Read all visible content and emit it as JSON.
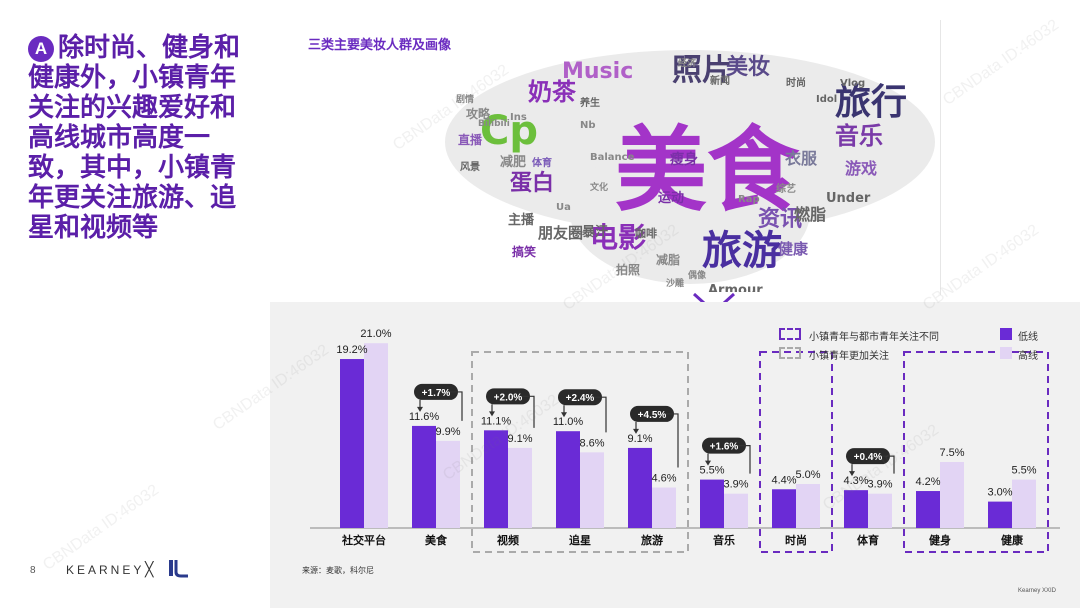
{
  "headline": {
    "badge": "A",
    "text": "除时尚、健身和健康外，小镇青年关注的兴趣爱好和高线城市高度一致，其中，小镇青年更关注旅游、追星和视频等"
  },
  "section_title": "三类主要美妆人群及画像",
  "word_cloud": {
    "words": [
      "美食",
      "旅游",
      "旅行",
      "照片",
      "Cp",
      "电影",
      "奶茶",
      "Music",
      "美妆",
      "音乐",
      "蛋白",
      "资讯",
      "游戏",
      "衣服",
      "减肥",
      "朋友圈",
      "直播",
      "运动",
      "燃脂",
      "主播",
      "瘦身",
      "健康",
      "咖啡",
      "Armour",
      "Under",
      "Idol",
      "Vlog",
      "Balance",
      "体育",
      "综艺",
      "攻略",
      "减脂",
      "拍照",
      "搞笑",
      "新闻",
      "时尚",
      "暴汗",
      "Nb",
      "Ins",
      "Ua",
      "养生",
      "风景",
      "经济",
      "剧情",
      "Bilibili",
      "Rap",
      "偶像",
      "文化",
      "沙雕"
    ]
  },
  "legend": {
    "different_label": "小镇青年与都市青年关注不同",
    "more_label": "小镇青年更加关注",
    "series": [
      {
        "name": "低线",
        "color": "#6a2bd6"
      },
      {
        "name": "高线",
        "color": "#e2d4f4"
      }
    ]
  },
  "chart_data": {
    "type": "bar",
    "categories": [
      "社交平台",
      "美食",
      "视频",
      "追星",
      "旅游",
      "音乐",
      "时尚",
      "体育",
      "健身",
      "健康"
    ],
    "series": [
      {
        "name": "低线",
        "values": [
          19.2,
          11.6,
          11.1,
          11.0,
          9.1,
          5.5,
          4.4,
          4.3,
          4.2,
          3.0
        ]
      },
      {
        "name": "高线",
        "values": [
          21.0,
          9.9,
          9.1,
          8.6,
          4.6,
          3.9,
          5.0,
          3.9,
          7.5,
          5.5
        ]
      }
    ],
    "value_labels": {
      "low": [
        "19.2%",
        "11.6%",
        "11.1%",
        "11.0%",
        "9.1%",
        "5.5%",
        "4.4%",
        "4.3%",
        "4.2%",
        "3.0%"
      ],
      "high": [
        "21.0%",
        "9.9%",
        "9.1%",
        "8.6%",
        "4.6%",
        "3.9%",
        "5.0%",
        "3.9%",
        "7.5%",
        "5.5%"
      ]
    },
    "diff_callouts": [
      {
        "category": "美食",
        "label": "+1.7%"
      },
      {
        "category": "视频",
        "label": "+2.0%"
      },
      {
        "category": "追星",
        "label": "+2.4%"
      },
      {
        "category": "旅游",
        "label": "+4.5%"
      },
      {
        "category": "音乐",
        "label": "+1.6%"
      },
      {
        "category": "体育",
        "label": "+0.4%"
      }
    ],
    "groups": {
      "more_focus_gray": [
        "视频",
        "追星",
        "旅游"
      ],
      "different_purple": [
        [
          "时尚"
        ],
        [
          "健身",
          "健康"
        ]
      ]
    },
    "ylim": [
      0,
      22
    ]
  },
  "footer": {
    "source": "来源：麦歌，科尔尼",
    "page_number": "8",
    "brand": "KEARNEY",
    "separator": "╳",
    "copyright": "Kearney XXID"
  },
  "watermark": "CBNData ID:46032",
  "colors": {
    "accent": "#6a2bc0",
    "low": "#6a2bd6",
    "high": "#e2d4f4"
  }
}
